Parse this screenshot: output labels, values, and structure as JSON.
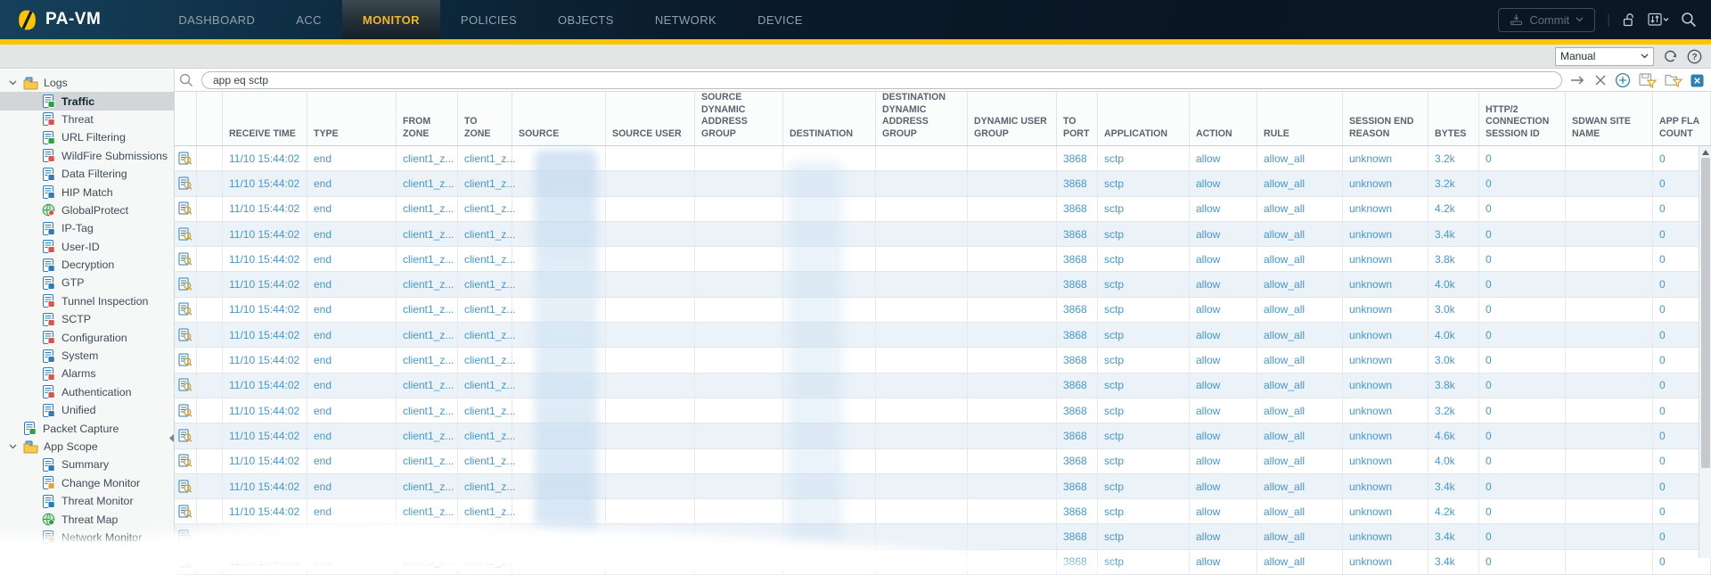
{
  "app": {
    "logo_text": "PA-VM"
  },
  "nav": {
    "items": [
      {
        "label": "DASHBOARD"
      },
      {
        "label": "ACC"
      },
      {
        "label": "MONITOR",
        "active": true
      },
      {
        "label": "POLICIES"
      },
      {
        "label": "OBJECTS"
      },
      {
        "label": "NETWORK"
      },
      {
        "label": "DEVICE"
      }
    ],
    "commit_label": "Commit",
    "right_icons": [
      "commit-icon",
      "lock-open-icon",
      "device-state-icon",
      "search-icon"
    ]
  },
  "toolbar": {
    "refresh_mode": "Manual",
    "icons": [
      "refresh-icon",
      "help-icon"
    ]
  },
  "filter_bar": {
    "query": "app eq sctp",
    "icons": [
      "search-icon",
      "apply-filter-arrow-icon",
      "clear-filter-icon",
      "add-filter-icon",
      "save-filter-icon",
      "load-filter-icon",
      "export-to-csv-icon"
    ]
  },
  "colors": {
    "accent_yellow": "#fdc500",
    "active_tab_text": "#f2b626",
    "link_blue": "#4697ce",
    "selected_row_bg": "#d2d6d8",
    "alt_row_bg": "#ebf2f8"
  },
  "sidebar": {
    "tree": [
      {
        "type": "group",
        "label": "Logs",
        "icon": "logs-folder-icon",
        "expanded": true,
        "children": [
          {
            "label": "Traffic",
            "icon": "traffic-log-icon",
            "accent": "#2f9e44",
            "selected": true
          },
          {
            "label": "Threat",
            "icon": "threat-log-icon",
            "accent": "#d9534f"
          },
          {
            "label": "URL Filtering",
            "icon": "url-filtering-log-icon",
            "accent": "#2f9e44"
          },
          {
            "label": "WildFire Submissions",
            "icon": "wildfire-submissions-log-icon",
            "accent": "#e2574c"
          },
          {
            "label": "Data Filtering",
            "icon": "data-filtering-log-icon",
            "accent": "#2d7cb5"
          },
          {
            "label": "HIP Match",
            "icon": "hip-match-log-icon",
            "accent": "#2d7cb5"
          },
          {
            "label": "GlobalProtect",
            "icon": "globalprotect-log-icon",
            "accent": "#d9534f",
            "shape": "globe"
          },
          {
            "label": "IP-Tag",
            "icon": "ip-tag-log-icon",
            "accent": "#2d7cb5"
          },
          {
            "label": "User-ID",
            "icon": "user-id-log-icon",
            "accent": "#d9534f"
          },
          {
            "label": "Decryption",
            "icon": "decryption-log-icon",
            "accent": "#2d7cb5"
          },
          {
            "label": "GTP",
            "icon": "gtp-log-icon",
            "accent": "#2d7cb5"
          },
          {
            "label": "Tunnel Inspection",
            "icon": "tunnel-inspection-log-icon",
            "accent": "#d9534f"
          },
          {
            "label": "SCTP",
            "icon": "sctp-log-icon",
            "accent": "#d9534f"
          },
          {
            "label": "Configuration",
            "icon": "configuration-log-icon",
            "accent": "#d9534f"
          },
          {
            "label": "System",
            "icon": "system-log-icon",
            "accent": "#2d7cb5"
          },
          {
            "label": "Alarms",
            "icon": "alarms-log-icon",
            "accent": "#d9534f"
          },
          {
            "label": "Authentication",
            "icon": "authentication-log-icon",
            "accent": "#d9534f"
          },
          {
            "label": "Unified",
            "icon": "unified-log-icon",
            "accent": "#2d7cb5"
          }
        ]
      },
      {
        "type": "top-item",
        "label": "Packet Capture",
        "icon": "packet-capture-icon",
        "accent": "#2f9e44"
      },
      {
        "type": "group",
        "label": "App Scope",
        "icon": "app-scope-folder-icon",
        "expanded": true,
        "children": [
          {
            "label": "Summary",
            "icon": "summary-icon",
            "accent": "#2d7cb5"
          },
          {
            "label": "Change Monitor",
            "icon": "change-monitor-icon",
            "accent": "#e8a33d"
          },
          {
            "label": "Threat Monitor",
            "icon": "threat-monitor-icon",
            "accent": "#2d7cb5"
          },
          {
            "label": "Threat Map",
            "icon": "threat-map-icon",
            "accent": "#2f9e44",
            "shape": "globe"
          },
          {
            "label": "Network Monitor",
            "icon": "network-monitor-icon",
            "accent": "#e8a33d"
          },
          {
            "label": "",
            "icon": "truncated-item-icon",
            "accent": "#d9534f",
            "faded": true
          }
        ]
      }
    ]
  },
  "table": {
    "columns": [
      {
        "key": "detail",
        "label": "",
        "width": 25
      },
      {
        "key": "flag",
        "label": "",
        "width": 29
      },
      {
        "key": "receive_time",
        "label": "RECEIVE TIME",
        "width": 95
      },
      {
        "key": "type",
        "label": "TYPE",
        "width": 100
      },
      {
        "key": "from_zone",
        "label": "FROM ZONE",
        "width": 69
      },
      {
        "key": "to_zone",
        "label": "TO ZONE",
        "width": 61
      },
      {
        "key": "source",
        "label": "SOURCE",
        "width": 105
      },
      {
        "key": "source_user",
        "label": "SOURCE USER",
        "width": 100
      },
      {
        "key": "src_dag",
        "label": "SOURCE DYNAMIC ADDRESS GROUP",
        "width": 99
      },
      {
        "key": "destination",
        "label": "DESTINATION",
        "width": 104
      },
      {
        "key": "dst_dag",
        "label": "DESTINATION DYNAMIC ADDRESS GROUP",
        "width": 103
      },
      {
        "key": "dyn_user_group",
        "label": "DYNAMIC USER GROUP",
        "width": 100
      },
      {
        "key": "to_port",
        "label": "TO PORT",
        "width": 46
      },
      {
        "key": "application",
        "label": "APPLICATION",
        "width": 103
      },
      {
        "key": "action",
        "label": "ACTION",
        "width": 76
      },
      {
        "key": "rule",
        "label": "RULE",
        "width": 96
      },
      {
        "key": "session_end_reason",
        "label": "SESSION END REASON",
        "width": 96
      },
      {
        "key": "bytes",
        "label": "BYTES",
        "width": 57
      },
      {
        "key": "http2_session_id",
        "label": "HTTP/2 CONNECTION SESSION ID",
        "width": 97
      },
      {
        "key": "sdwan_site_name",
        "label": "SDWAN SITE NAME",
        "width": 98
      },
      {
        "key": "app_flap_count",
        "label": "APP FLA COUNT",
        "width": 65
      }
    ],
    "row_defaults": {
      "receive_time": "11/10 15:44:02",
      "type": "end",
      "from_zone": "client1_z...",
      "to_zone": "client1_z...",
      "source": "",
      "source_user": "",
      "src_dag": "",
      "destination": "",
      "dst_dag": "",
      "dyn_user_group": "",
      "to_port": "3868",
      "application": "sctp",
      "action": "allow",
      "rule": "allow_all",
      "session_end_reason": "unknown",
      "http2_session_id": "0",
      "sdwan_site_name": "",
      "app_flap_count": "0"
    },
    "rows": [
      {
        "bytes": "3.2k"
      },
      {
        "bytes": "3.2k"
      },
      {
        "bytes": "4.2k"
      },
      {
        "bytes": "3.4k"
      },
      {
        "bytes": "3.8k"
      },
      {
        "bytes": "4.0k"
      },
      {
        "bytes": "3.0k"
      },
      {
        "bytes": "4.0k"
      },
      {
        "bytes": "3.0k"
      },
      {
        "bytes": "3.8k"
      },
      {
        "bytes": "3.2k"
      },
      {
        "bytes": "4.6k"
      },
      {
        "bytes": "4.0k"
      },
      {
        "bytes": "3.4k"
      },
      {
        "bytes": "4.2k"
      },
      {
        "bytes": "3.4k"
      },
      {
        "bytes": "3.4k",
        "partial": true
      }
    ]
  }
}
